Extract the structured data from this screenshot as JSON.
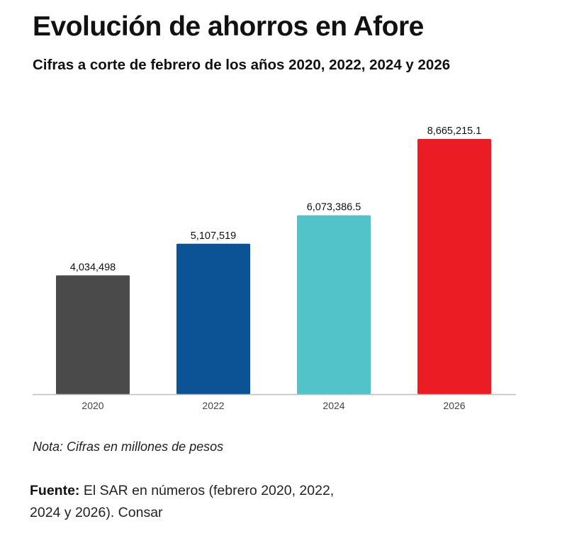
{
  "header": {
    "title": "Evolución de ahorros en Afore",
    "subtitle": "Cifras a corte de febrero de los años 2020, 2022, 2024 y 2026"
  },
  "chart_data": {
    "type": "bar",
    "title": "Evolución de ahorros en Afore",
    "subtitle": "Cifras a corte de febrero de los años 2020, 2022, 2024 y 2026",
    "categories": [
      "2020",
      "2022",
      "2024",
      "2026"
    ],
    "values": [
      4034498,
      5107519,
      6073386.5,
      8665215.1
    ],
    "value_labels": [
      "4,034,498",
      "5,107,519",
      "6,073,386.5",
      "8,665,215.1"
    ],
    "colors": [
      "#4a4a4a",
      "#0b5394",
      "#52c3c9",
      "#ec1c24"
    ],
    "xlabel": "",
    "ylabel": "",
    "ylim": [
      0,
      8665215.1
    ],
    "grid": false,
    "legend": "none"
  },
  "footer": {
    "note": "Nota: Cifras en millones de pesos",
    "source_label": "Fuente:",
    "source_text": " El SAR en números (febrero 2020, 2022, 2024 y 2026). Consar"
  }
}
